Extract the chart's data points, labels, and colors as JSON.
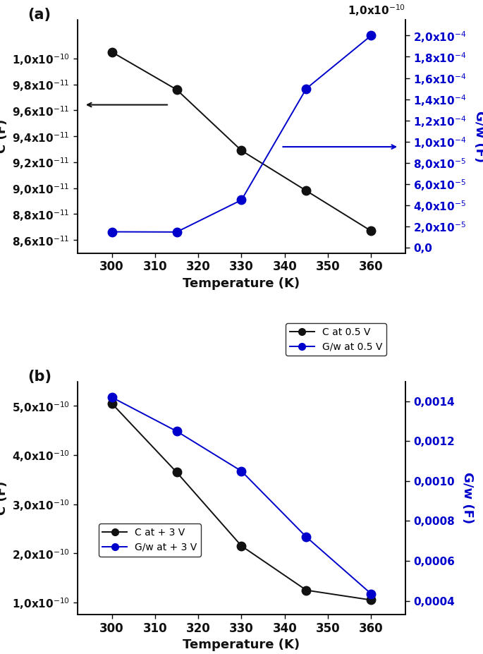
{
  "panel_a": {
    "temp": [
      300,
      315,
      330,
      345,
      360
    ],
    "C": [
      1.005e-10,
      9.76e-11,
      9.29e-11,
      8.98e-11,
      8.67e-11
    ],
    "Gw": [
      1.5e-05,
      1.48e-05,
      4.5e-05,
      0.00015,
      0.0002
    ],
    "C_ylim": [
      8.5e-11,
      1.03e-10
    ],
    "Gw_ylim": [
      -5e-06,
      0.000215
    ],
    "C_yticks": [
      8.6e-11,
      8.8e-11,
      9e-11,
      9.2e-11,
      9.4e-11,
      9.6e-11,
      9.8e-11,
      1e-10
    ],
    "C_ytick_labels": [
      "8,6x10",
      "8,8x10",
      "9,0x10",
      "9,2x10",
      "9,4x10",
      "9,6x10",
      "9,8x10",
      "1,0x10"
    ],
    "C_ytick_exps": [
      "-11",
      "-11",
      "-11",
      "-11",
      "-11",
      "-11",
      "-11",
      "-10"
    ],
    "Gw_yticks": [
      0.0,
      2e-05,
      4e-05,
      6e-05,
      8e-05,
      0.0001,
      0.00012,
      0.00014,
      0.00016,
      0.00018,
      0.0002
    ],
    "Gw_ytick_labels": [
      "0,0",
      "2,0x10",
      "4,0x10",
      "6,0x10",
      "8,0x10",
      "1,0x10",
      "1,2x10",
      "1,4x10",
      "1,6x10",
      "1,8x10",
      "2,0x10"
    ],
    "Gw_ytick_exps": [
      "",
      "-5",
      "-5",
      "-5",
      "-5",
      "-4",
      "-4",
      "-4",
      "-4",
      "-4",
      "-4"
    ],
    "xlabel": "Temperature (K)",
    "ylabel_left": "C (F)",
    "ylabel_right": "G/w (F)",
    "legend_C": "C at 0.5 V",
    "legend_Gw": "G/w at 0.5 V",
    "panel_label": "(a)",
    "top_tick_label": "1,0x10",
    "top_tick_exp": "-10"
  },
  "panel_b": {
    "temp": [
      300,
      315,
      330,
      345,
      360
    ],
    "C": [
      5.05e-10,
      3.65e-10,
      2.15e-10,
      1.25e-10,
      1.05e-10
    ],
    "Gw": [
      0.00142,
      0.00125,
      0.00105,
      0.00072,
      0.000435
    ],
    "C_ylim": [
      7.5e-11,
      5.5e-10
    ],
    "Gw_ylim": [
      0.00033,
      0.0015
    ],
    "C_yticks": [
      1e-10,
      2e-10,
      3e-10,
      4e-10,
      5e-10
    ],
    "C_ytick_labels": [
      "1,0x10",
      "2,0x10",
      "3,0x10",
      "4,0x10",
      "5,0x10"
    ],
    "C_ytick_exps": [
      "-10",
      "-10",
      "-10",
      "-10",
      "-10"
    ],
    "Gw_yticks": [
      0.0004,
      0.0006,
      0.0008,
      0.001,
      0.0012,
      0.0014
    ],
    "Gw_ytick_labels": [
      "0,0004",
      "0,0006",
      "0,0008",
      "0,0010",
      "0,0012",
      "0,0014"
    ],
    "Gw_ytick_exps": [
      "",
      "",
      "",
      "",
      "",
      ""
    ],
    "xlabel": "Temperature (K)",
    "ylabel_left": "C (F)",
    "ylabel_right": "G/w (F)",
    "legend_C": "C at + 3 V",
    "legend_Gw": "G/w at + 3 V",
    "panel_label": "(b)"
  },
  "xticks": [
    300,
    310,
    320,
    330,
    340,
    350,
    360
  ],
  "xticklabels": [
    "300",
    "310",
    "320",
    "330",
    "340",
    "350",
    "360"
  ],
  "xlim": [
    292,
    368
  ],
  "black_color": "#111111",
  "blue_color": "#0000cc",
  "marker_size": 9,
  "linewidth": 1.4
}
